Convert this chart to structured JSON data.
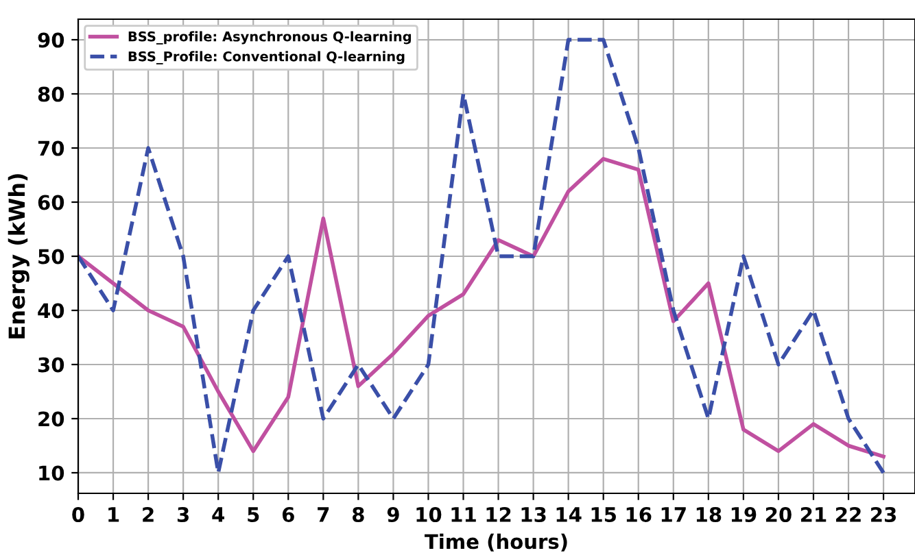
{
  "chart_data": {
    "type": "line",
    "xlabel": "Time (hours)",
    "ylabel": "Energy (kWh)",
    "x": [
      0,
      1,
      2,
      3,
      4,
      5,
      6,
      7,
      8,
      9,
      10,
      11,
      12,
      13,
      14,
      15,
      16,
      17,
      18,
      19,
      20,
      21,
      22,
      23
    ],
    "series": [
      {
        "name": "BSS_profile: Asynchronous Q-learning",
        "color": "#c050a0",
        "line_style": "solid",
        "values": [
          50,
          45,
          40,
          37,
          25,
          14,
          24,
          57,
          26,
          32,
          39,
          43,
          53,
          50,
          62,
          68,
          66,
          38,
          45,
          18,
          14,
          19,
          15,
          13
        ]
      },
      {
        "name": "BSS_Profile: Conventional Q-learning",
        "color": "#3a4fa8",
        "line_style": "dashed",
        "values": [
          50,
          40,
          70,
          50,
          10,
          40,
          50,
          20,
          30,
          20,
          30,
          80,
          50,
          50,
          90,
          90,
          70,
          40,
          20,
          50,
          30,
          40,
          20,
          10
        ]
      }
    ],
    "xlim": [
      0,
      23.9
    ],
    "ylim": [
      6.2,
      93.8
    ],
    "xticks": [
      0,
      1,
      2,
      3,
      4,
      5,
      6,
      7,
      8,
      9,
      10,
      11,
      12,
      13,
      14,
      15,
      16,
      17,
      18,
      19,
      20,
      21,
      22,
      23
    ],
    "yticks": [
      10,
      20,
      30,
      40,
      50,
      60,
      70,
      80,
      90
    ],
    "grid": true,
    "legend": "top left",
    "marker": "none"
  }
}
